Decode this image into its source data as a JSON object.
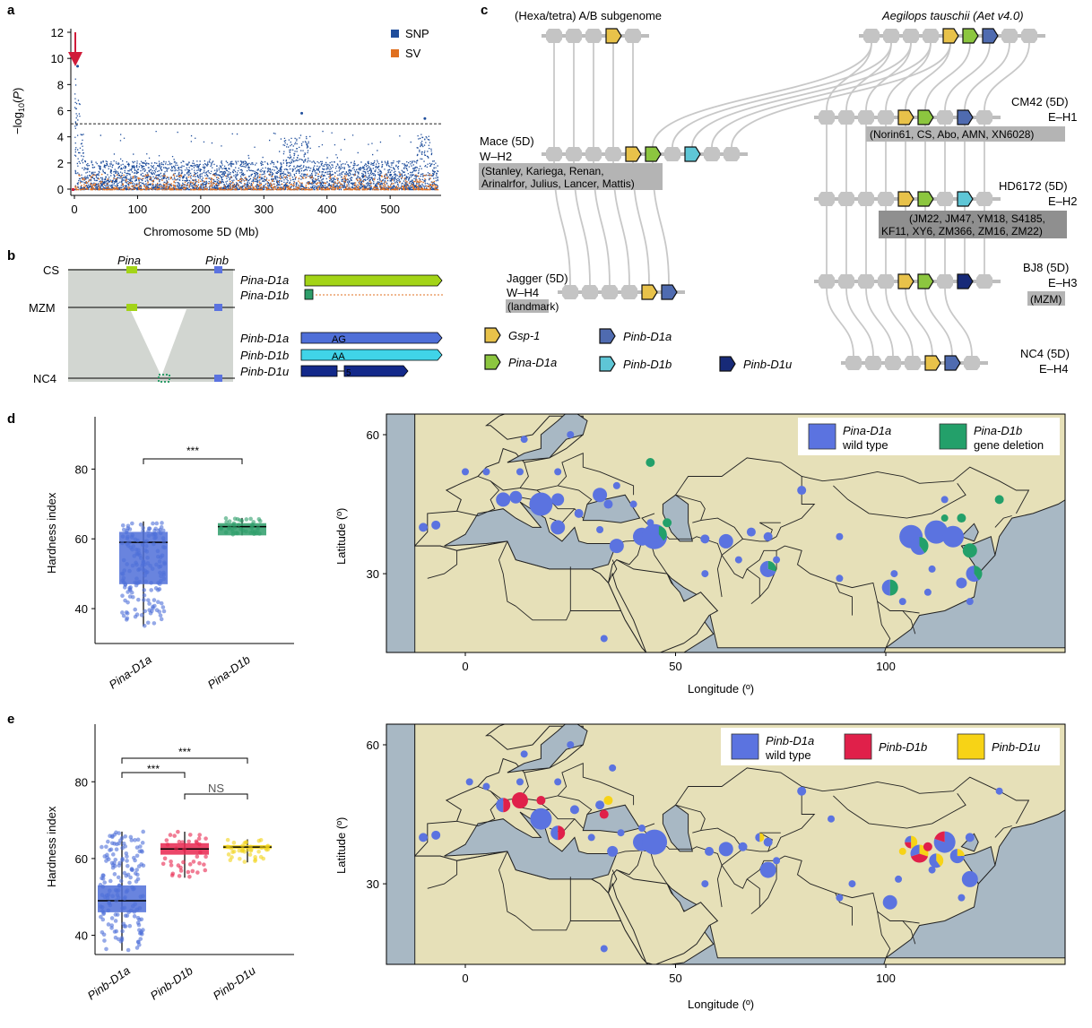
{
  "panels": {
    "a": "a",
    "b": "b",
    "c": "c",
    "d": "d",
    "e": "e"
  },
  "panel_a": {
    "chart_data": {
      "type": "scatter",
      "xlabel": "Chromosome 5D (Mb)",
      "ylabel": "−log10(P)",
      "xlim": [
        0,
        575
      ],
      "ylim": [
        0,
        12
      ],
      "xticks": [
        "0",
        "100",
        "200",
        "300",
        "400",
        "500"
      ],
      "yticks": [
        "0",
        "2",
        "4",
        "6",
        "8",
        "10",
        "12"
      ],
      "threshold": 5,
      "legend": [
        {
          "name": "SNP",
          "color": "#1f4e9c"
        },
        {
          "name": "SV",
          "color": "#e07020"
        }
      ],
      "peaks": [
        {
          "pos_mb": 5,
          "value": 9.4
        },
        {
          "pos_mb": 360,
          "value": 5.8
        },
        {
          "pos_mb": 555,
          "value": 5.4
        }
      ]
    }
  },
  "panel_b": {
    "lines": [
      "CS",
      "MZM",
      "NC4"
    ],
    "top_labels": [
      "Pina",
      "Pinb"
    ],
    "genes": [
      {
        "name": "Pina-D1a",
        "color": "#a3d417"
      },
      {
        "name": "Pina-D1b",
        "color": "#2e9e6a"
      },
      {
        "name": "Pinb-D1a",
        "color": "#4f6fd8",
        "inner": "AG"
      },
      {
        "name": "Pinb-D1b",
        "color": "#40d4e8",
        "inner": "AA"
      },
      {
        "name": "Pinb-D1u",
        "color": "#13298a",
        "inner": "5"
      }
    ]
  },
  "panel_c": {
    "top_left": "(Hexa/tetra) A/B subgenome",
    "top_right": "Aegilops tauschii (Aet v4.0)",
    "haplotypes": [
      {
        "name": "Mace (5D)",
        "code": "W–H2",
        "members": "(Stanley, Kariega, Renan, Arinalrfor, Julius, Lancer, Mattis)"
      },
      {
        "name": "CM42 (5D)",
        "code": "E–H1",
        "members": "(Norin61, CS, Abo, AMN, XN6028)"
      },
      {
        "name": "HD6172 (5D)",
        "code": "E–H2",
        "members": "(JM22, JM47, YM18, S4185, KF11, XY6, ZM366, ZM16, ZM22)"
      },
      {
        "name": "Jagger (5D)",
        "code": "W–H4",
        "members": "(landmark)"
      },
      {
        "name": "BJ8 (5D)",
        "code": "E–H3",
        "members": "(MZM)"
      },
      {
        "name": "NC4 (5D)",
        "code": "E–H4",
        "members": ""
      }
    ],
    "legend": [
      {
        "name": "Gsp-1",
        "color": "#e8c24a"
      },
      {
        "name": "Pinb-D1a",
        "color": "#4f6bb0"
      },
      {
        "name": "Pina-D1a",
        "color": "#8cc63f"
      },
      {
        "name": "Pinb-D1b",
        "color": "#5ec6d6"
      },
      {
        "name": "Pinb-D1u",
        "color": "#172a78"
      }
    ]
  },
  "panel_d": {
    "chart_data": {
      "type": "box",
      "ylabel": "Hardness index",
      "categories": [
        "Pina-D1a",
        "Pina-D1b"
      ],
      "yticks": [
        "40",
        "60",
        "80"
      ],
      "ylim": [
        30,
        95
      ],
      "boxes": [
        {
          "name": "Pina-D1a",
          "q1": 47,
          "median": 59,
          "q3": 62,
          "min": 35,
          "max": 65,
          "color": "#4f6fd8"
        },
        {
          "name": "Pina-D1b",
          "q1": 61,
          "median": 63.5,
          "q3": 64.5,
          "min": 61,
          "max": 66,
          "color": "#2e9e6a"
        }
      ],
      "significance": [
        {
          "label": "***",
          "between": [
            "Pina-D1a",
            "Pina-D1b"
          ]
        }
      ]
    },
    "map": {
      "xlabel": "Longitude (º)",
      "ylabel": "Latitude (º)",
      "xticks": [
        "0",
        "50",
        "100"
      ],
      "yticks": [
        "30",
        "60"
      ],
      "legend": [
        {
          "name": "Pina-D1a",
          "sub": "wild type",
          "color": "#5b73e0"
        },
        {
          "name": "Pina-D1b",
          "sub": "gene deletion",
          "color": "#23a06a"
        }
      ]
    }
  },
  "panel_e": {
    "chart_data": {
      "type": "box",
      "ylabel": "Hardness index",
      "categories": [
        "Pinb-D1a",
        "Pinb-D1b",
        "Pinb-D1u"
      ],
      "yticks": [
        "40",
        "60",
        "80"
      ],
      "ylim": [
        35,
        95
      ],
      "boxes": [
        {
          "name": "Pinb-D1a",
          "q1": 46,
          "median": 49,
          "q3": 53,
          "min": 36,
          "max": 67,
          "color": "#4f6fd8"
        },
        {
          "name": "Pinb-D1b",
          "q1": 61,
          "median": 62.5,
          "q3": 64,
          "min": 55,
          "max": 67,
          "color": "#e8264f"
        },
        {
          "name": "Pinb-D1u",
          "q1": 62.5,
          "median": 63,
          "q3": 63.5,
          "min": 59,
          "max": 65,
          "color": "#f2d31a"
        }
      ],
      "significance": [
        {
          "label": "***",
          "between": [
            "Pinb-D1a",
            "Pinb-D1u"
          ]
        },
        {
          "label": "***",
          "between": [
            "Pinb-D1a",
            "Pinb-D1b"
          ]
        },
        {
          "label": "NS",
          "between": [
            "Pinb-D1b",
            "Pinb-D1u"
          ]
        }
      ]
    },
    "map": {
      "xlabel": "Longitude (º)",
      "ylabel": "Latitude (º)",
      "xticks": [
        "0",
        "50",
        "100"
      ],
      "yticks": [
        "30",
        "60"
      ],
      "legend": [
        {
          "name": "Pinb-D1a",
          "sub": "wild type",
          "color": "#5b73e0"
        },
        {
          "name": "Pinb-D1b",
          "sub": "",
          "color": "#e0204a"
        },
        {
          "name": "Pinb-D1u",
          "sub": "",
          "color": "#f7d316"
        }
      ]
    }
  }
}
